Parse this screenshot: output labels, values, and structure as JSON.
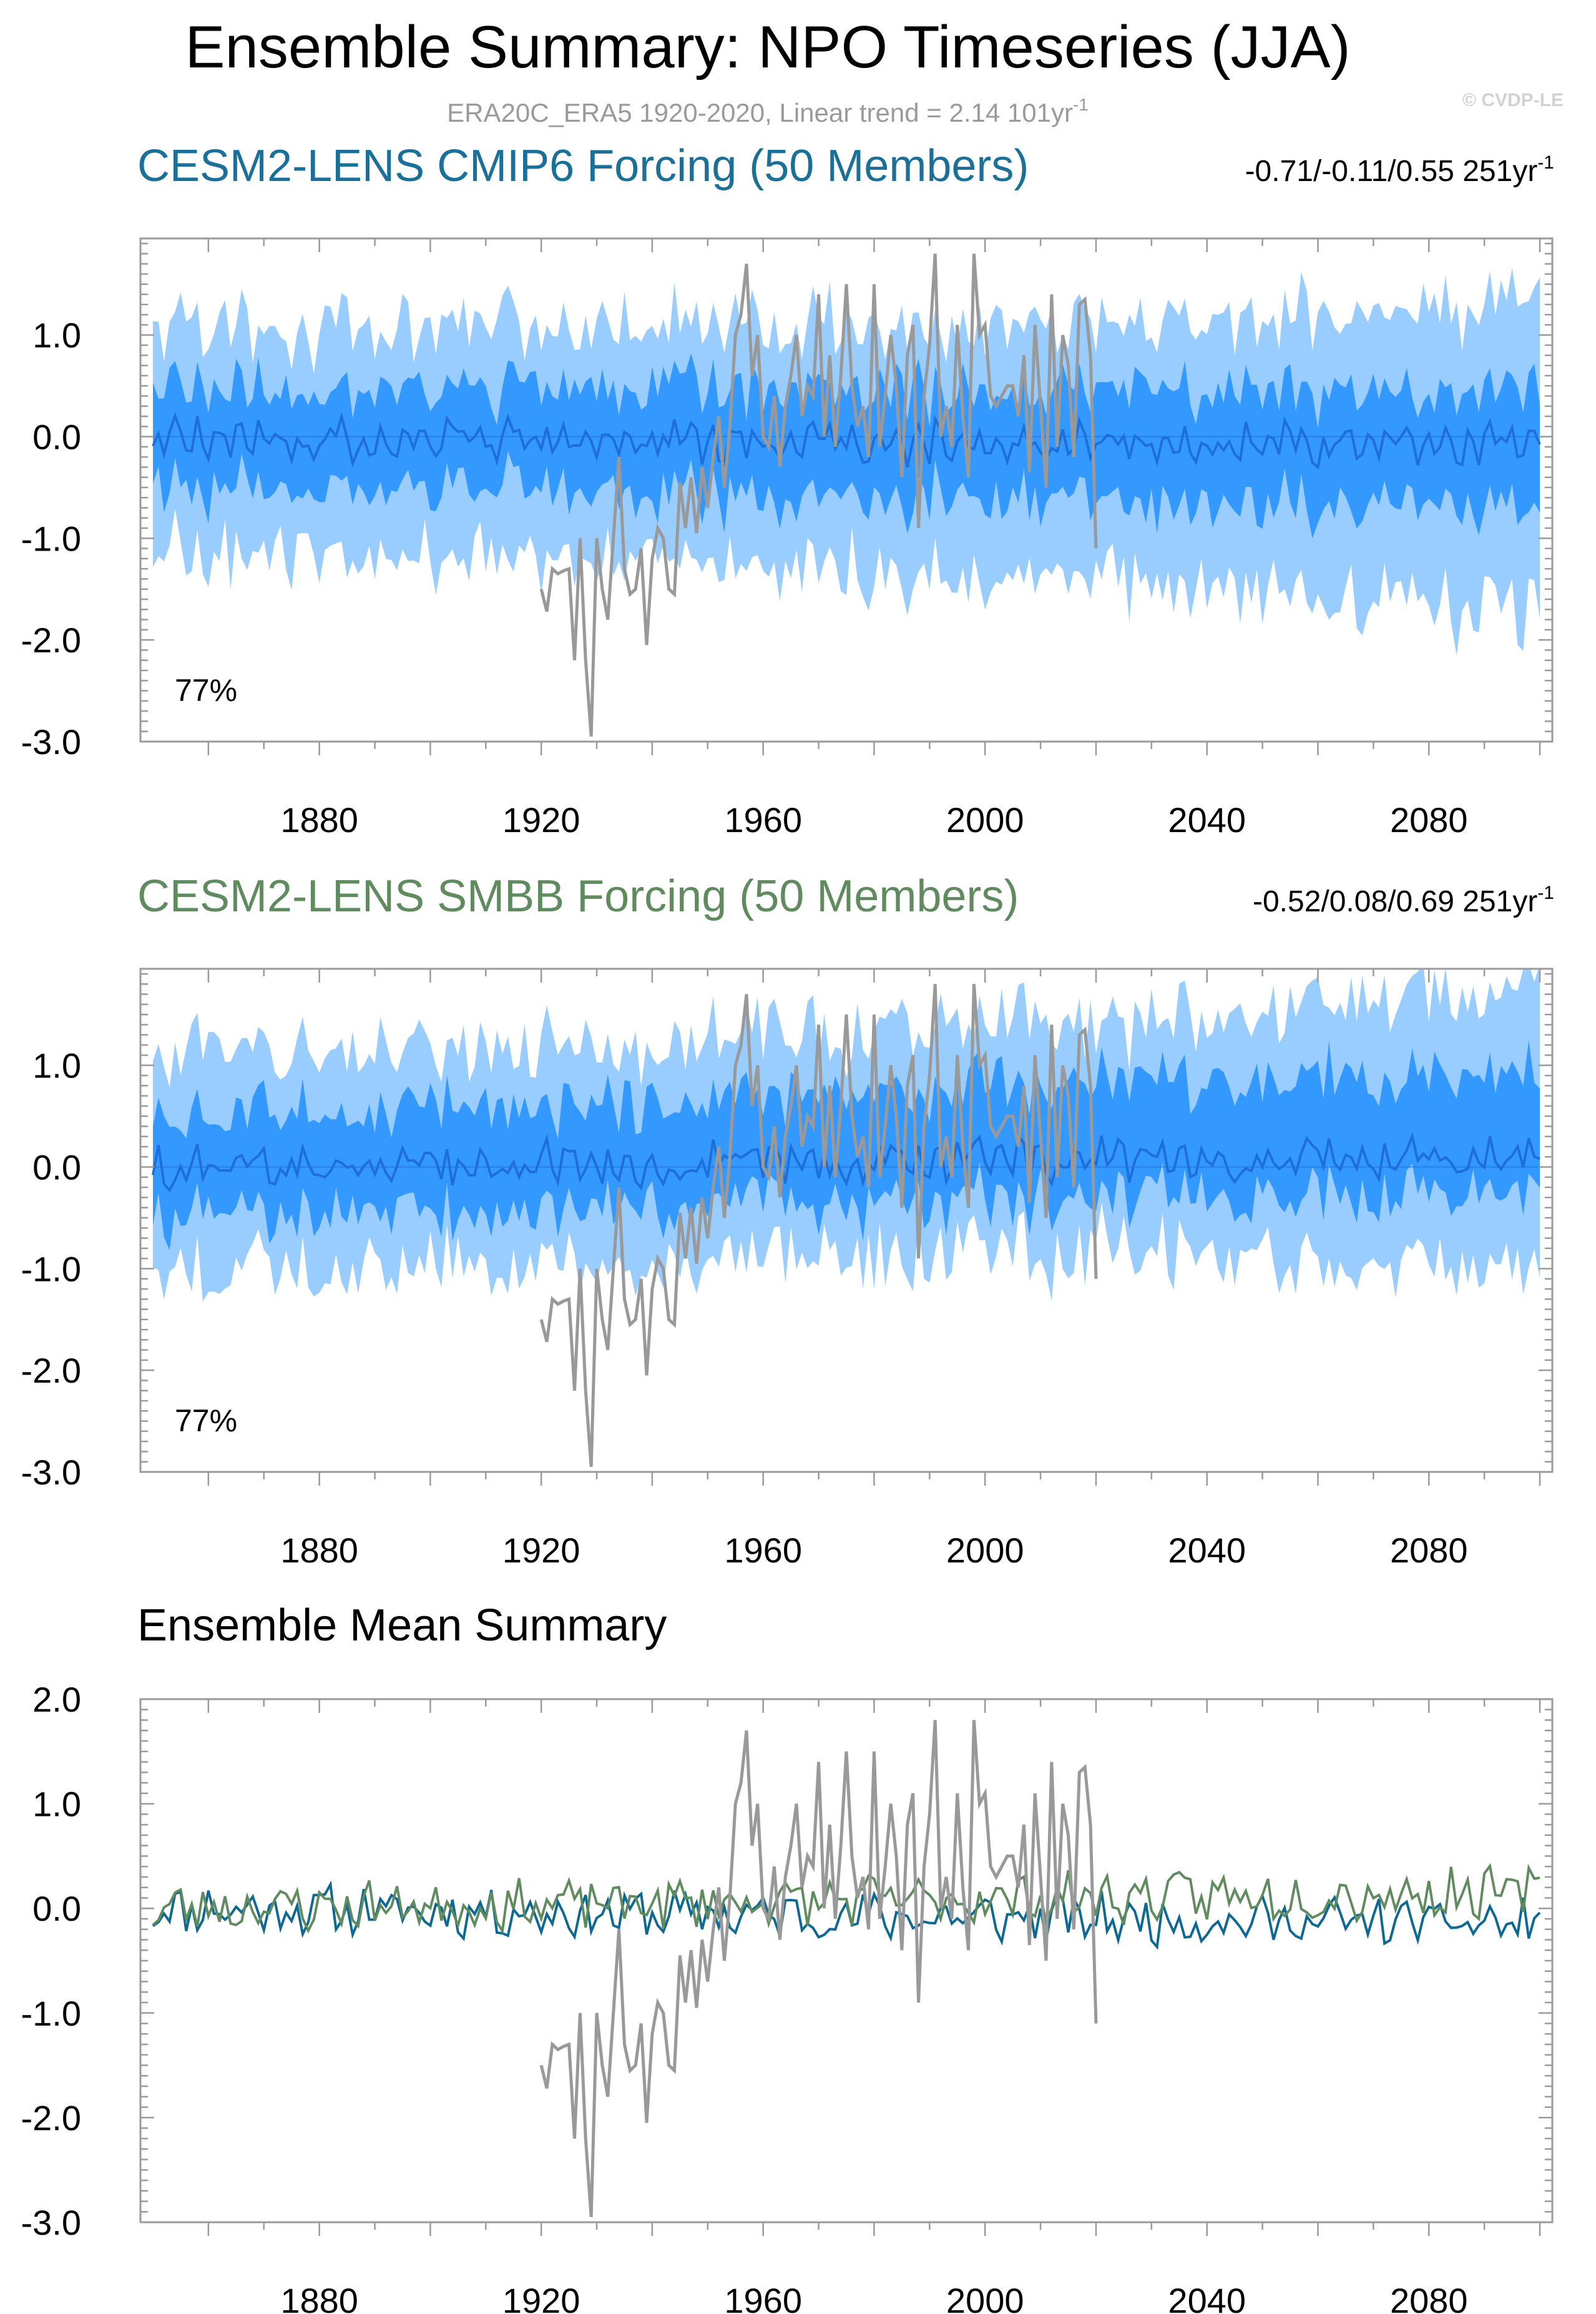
{
  "title": "Ensemble Summary: NPO Timeseries (JJA)",
  "subtitle": "ERA20C_ERA5 1920-2020, Linear trend = 2.14 101yr",
  "subtitle_sup": "-1",
  "credit": "© CVDP-LE",
  "colors": {
    "outer_band": "#99ccff",
    "inner_band": "#3399ff",
    "ensemble_mean_line": "#1e6fd9",
    "observations": "#999999",
    "cmip6": "#0d6894",
    "smbb": "#5f8b5f",
    "frame": "#9a9a9a"
  },
  "chart_data": [
    {
      "type": "area",
      "panel": "cmip6",
      "title": "CESM2-LENS CMIP6 Forcing (50 Members)",
      "title_color": "#1a7099",
      "stat": "-0.71/-0.11/0.55 251yr",
      "stat_sup": "-1",
      "pct_label": "77%",
      "xlim": [
        1850,
        2100
      ],
      "ylim": [
        -3.0,
        1.95
      ],
      "xticks": [
        "1880",
        "1920",
        "1960",
        "2000",
        "2040",
        "2080"
      ],
      "yticks": [
        "1.0",
        "0.0",
        "-1.0",
        "-2.0",
        "-3.0"
      ],
      "series": [
        {
          "name": "10-90% spread",
          "style": "outer_band",
          "mean_lo": -1.05,
          "mean_hi": 1.1,
          "trend_lo": -0.4,
          "trend_hi": 0.1
        },
        {
          "name": "25-75% spread",
          "style": "inner_band",
          "mean_lo": -0.45,
          "mean_hi": 0.5,
          "trend_lo": -0.2,
          "trend_hi": 0.05
        },
        {
          "name": "Ensemble mean",
          "style": "line",
          "color": "#1e6fd9",
          "trend": -0.1
        },
        {
          "name": "ERA20C_ERA5",
          "style": "obs",
          "color": "#999999"
        }
      ]
    },
    {
      "type": "area",
      "panel": "smbb",
      "title": "CESM2-LENS SMBB Forcing (50 Members)",
      "title_color": "#5f8b5f",
      "stat": "-0.52/0.08/0.69 251yr",
      "stat_sup": "-1",
      "pct_label": "77%",
      "xlim": [
        1850,
        2100
      ],
      "ylim": [
        -3.0,
        1.95
      ],
      "xticks": [
        "1880",
        "1920",
        "1960",
        "2000",
        "2040",
        "2080"
      ],
      "yticks": [
        "1.0",
        "0.0",
        "-1.0",
        "-2.0",
        "-3.0"
      ],
      "series": [
        {
          "name": "10-90% spread",
          "style": "outer_band",
          "mean_lo": -1.0,
          "mean_hi": 1.1,
          "trend_lo": 0.1,
          "trend_hi": 0.35
        },
        {
          "name": "25-75% spread",
          "style": "inner_band",
          "mean_lo": -0.45,
          "mean_hi": 0.5,
          "trend_lo": 0.1,
          "trend_hi": 0.35
        },
        {
          "name": "Ensemble mean",
          "style": "line",
          "color": "#1e6fd9",
          "trend": 0.1
        },
        {
          "name": "ERA20C_ERA5",
          "style": "obs",
          "color": "#999999"
        }
      ]
    },
    {
      "type": "line",
      "panel": "summary",
      "title": "Ensemble Mean Summary",
      "title_color": "#000000",
      "xlim": [
        1850,
        2100
      ],
      "ylim": [
        -3.0,
        2.0
      ],
      "xticks": [
        "1880",
        "1920",
        "1960",
        "2000",
        "2040",
        "2080"
      ],
      "yticks": [
        "2.0",
        "1.0",
        "0.0",
        "-1.0",
        "-2.0",
        "-3.0"
      ],
      "series": [
        {
          "name": "CESM2-LENS CMIP6 ensemble mean",
          "color": "#0d6894",
          "seed": 11,
          "trend": -0.15
        },
        {
          "name": "CESM2-LENS SMBB ensemble mean",
          "color": "#5f8b5f",
          "seed": 23,
          "trend": 0.15
        },
        {
          "name": "ERA20C_ERA5",
          "color": "#999999",
          "obs": true
        }
      ]
    }
  ],
  "observations": {
    "name": "ERA20C_ERA5",
    "years": [
      1920,
      2020
    ],
    "values": [
      -1.5,
      -1.72,
      -1.3,
      -1.35,
      -1.32,
      -1.3,
      -2.2,
      -1.0,
      -2.2,
      -2.95,
      -1.0,
      -1.5,
      -1.8,
      -1.0,
      -0.2,
      -1.3,
      -1.55,
      -1.5,
      -1.1,
      -2.05,
      -1.2,
      -0.9,
      -1.0,
      -1.5,
      -1.55,
      -0.45,
      -0.9,
      -0.4,
      -0.95,
      -0.3,
      -0.7,
      -0.2,
      0.2,
      -0.5,
      0.1,
      1.0,
      1.2,
      1.7,
      0.6,
      1.0,
      0.0,
      -0.1,
      0.4,
      -0.3,
      0.3,
      0.6,
      1.0,
      0.2,
      0.5,
      0.4,
      1.4,
      0.0,
      0.8,
      -0.1,
      0.6,
      1.5,
      0.5,
      0.1,
      0.3,
      -0.2,
      1.5,
      -0.1,
      0.4,
      1.0,
      0.5,
      -0.4,
      0.8,
      1.1,
      -0.9,
      0.4,
      0.9,
      1.8,
      0.0,
      0.3,
      -0.1,
      1.1,
      0.2,
      -0.4,
      1.8,
      1.0,
      1.1,
      0.4,
      0.3,
      0.4,
      0.5,
      0.5,
      0.2,
      0.8,
      -0.35,
      1.1,
      0.3,
      -0.5,
      1.4,
      -0.1,
      1.0,
      0.7,
      -0.2,
      1.3,
      1.35,
      0.8,
      -1.1
    ]
  }
}
